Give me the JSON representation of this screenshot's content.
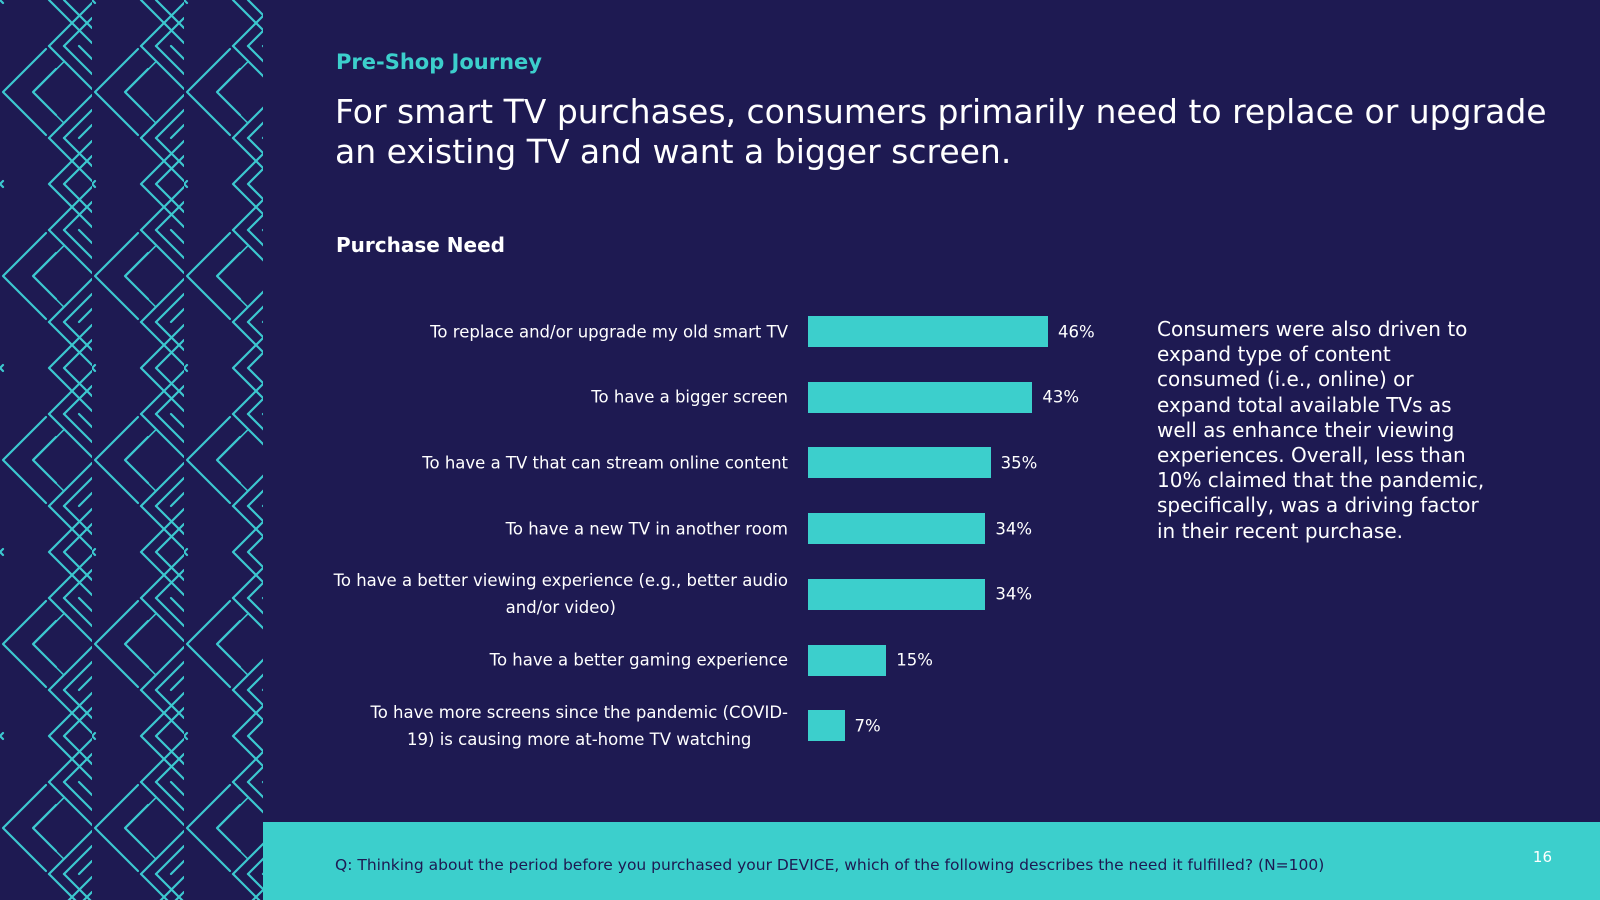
{
  "eyebrow": "Pre-Shop Journey",
  "headline": "For smart TV purchases, consumers primarily need to replace or upgrade an existing TV and want a bigger screen.",
  "note_lines": [
    "Consumers were also driven to",
    "expand type of content",
    "consumed (i.e., online) or",
    "expand total available TVs as",
    "well as enhance their viewing",
    "experiences. Overall, less than",
    "10% claimed that the pandemic,",
    "specifically, was a driving factor",
    "in their recent purchase."
  ],
  "footer": {
    "question": "Q: Thinking about the period before you purchased your DEVICE, which of the following describes the need it fulfilled? (N=100)",
    "page_number": "16"
  },
  "colors": {
    "background": "#1e1a52",
    "accent": "#3ccfcc"
  },
  "chart_data": {
    "type": "bar",
    "orientation": "horizontal",
    "title": "Purchase Need",
    "categories": [
      [
        "To replace and/or upgrade my old smart TV"
      ],
      [
        "To have a bigger screen"
      ],
      [
        "To have a TV that can stream online content"
      ],
      [
        "To have a new TV in another room"
      ],
      [
        "To have a better viewing experience (e.g., better audio",
        "and/or video)"
      ],
      [
        "To have a better gaming experience"
      ],
      [
        "To have more screens since the pandemic (COVID-",
        "19) is causing more at-home TV watching"
      ]
    ],
    "values": [
      46,
      43,
      35,
      34,
      34,
      15,
      7
    ],
    "value_labels": [
      "46%",
      "43%",
      "35%",
      "34%",
      "34%",
      "15%",
      "7%"
    ],
    "unit": "%",
    "xlim": [
      0,
      100
    ],
    "grid": false
  }
}
